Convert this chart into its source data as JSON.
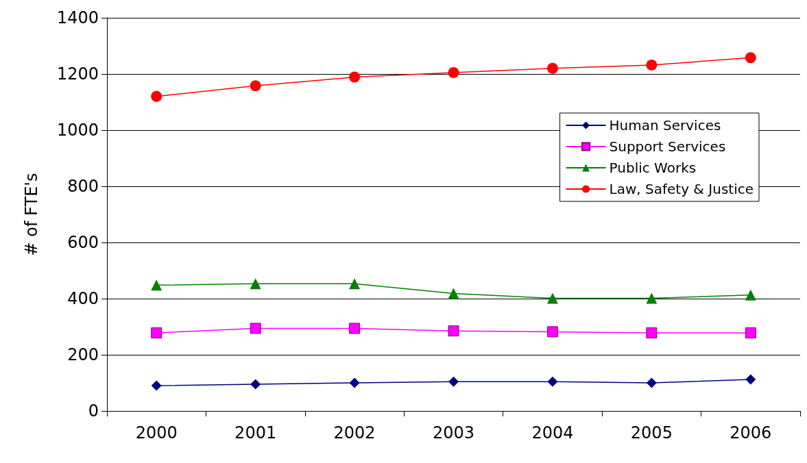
{
  "chart_data": {
    "type": "line",
    "ylabel": "# of FTE's",
    "categories": [
      "2000",
      "2001",
      "2002",
      "2003",
      "2004",
      "2005",
      "2006"
    ],
    "series": [
      {
        "name": "Human Services",
        "color": "#000080",
        "marker": "diamond",
        "values": [
          90,
          95,
          100,
          104,
          104,
          100,
          112
        ]
      },
      {
        "name": "Support Services",
        "color": "#ff00ff",
        "marker": "square",
        "values": [
          278,
          294,
          294,
          285,
          282,
          278,
          278
        ]
      },
      {
        "name": "Public Works",
        "color": "#008000",
        "marker": "triangle",
        "values": [
          448,
          453,
          453,
          418,
          401,
          401,
          413
        ]
      },
      {
        "name": "Law, Safety & Justice",
        "color": "#ff0000",
        "marker": "circle",
        "values": [
          1120,
          1158,
          1189,
          1205,
          1220,
          1232,
          1258
        ]
      }
    ],
    "ylim": [
      0,
      1400
    ],
    "yticks": [
      0,
      200,
      400,
      600,
      800,
      1000,
      1200,
      1400
    ],
    "grid": "y",
    "legend": "top right",
    "line_style": "solid"
  }
}
